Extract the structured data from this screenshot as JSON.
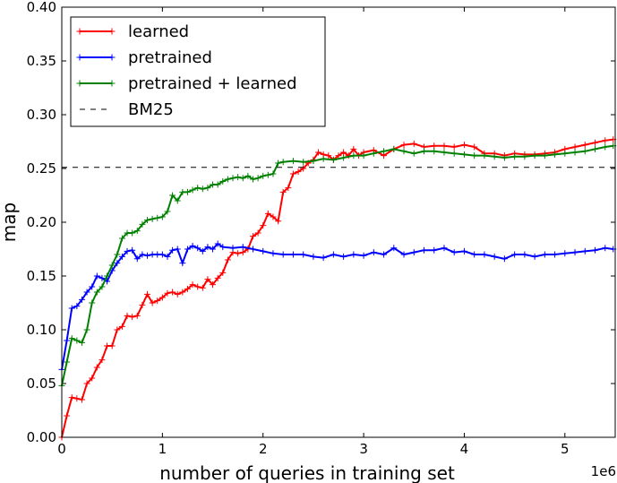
{
  "chart_data": {
    "type": "line",
    "title": "",
    "xlabel": "number of queries in training set",
    "ylabel": "map",
    "x_multiplier_label": "1e6",
    "xlim": [
      0,
      5.5
    ],
    "ylim": [
      0,
      0.4
    ],
    "x_ticks": [
      0,
      1,
      2,
      3,
      4,
      5
    ],
    "x_tick_labels": [
      "0",
      "1",
      "2",
      "3",
      "4",
      "5"
    ],
    "y_ticks": [
      0,
      0.05,
      0.1,
      0.15,
      0.2,
      0.25,
      0.3,
      0.35,
      0.4
    ],
    "y_tick_labels": [
      "0.00",
      "0.05",
      "0.10",
      "0.15",
      "0.20",
      "0.25",
      "0.30",
      "0.35",
      "0.40"
    ],
    "grid": false,
    "legend_position": "top-left",
    "series": [
      {
        "name": "learned",
        "color": "#ff0000",
        "marker": "plus",
        "x": [
          0,
          0.05,
          0.1,
          0.15,
          0.2,
          0.25,
          0.3,
          0.35,
          0.4,
          0.45,
          0.5,
          0.55,
          0.6,
          0.65,
          0.7,
          0.75,
          0.8,
          0.85,
          0.9,
          0.95,
          1.0,
          1.05,
          1.1,
          1.15,
          1.2,
          1.25,
          1.3,
          1.35,
          1.4,
          1.45,
          1.5,
          1.55,
          1.6,
          1.65,
          1.7,
          1.75,
          1.8,
          1.85,
          1.9,
          1.95,
          2.0,
          2.05,
          2.1,
          2.15,
          2.2,
          2.25,
          2.3,
          2.35,
          2.4,
          2.45,
          2.5,
          2.55,
          2.6,
          2.65,
          2.7,
          2.75,
          2.8,
          2.85,
          2.9,
          2.95,
          3.0,
          3.1,
          3.2,
          3.3,
          3.4,
          3.5,
          3.6,
          3.7,
          3.8,
          3.9,
          4.0,
          4.1,
          4.2,
          4.3,
          4.4,
          4.5,
          4.6,
          4.7,
          4.8,
          4.9,
          5.0,
          5.1,
          5.2,
          5.3,
          5.4,
          5.48
        ],
        "y": [
          0.0,
          0.02,
          0.037,
          0.036,
          0.035,
          0.05,
          0.055,
          0.065,
          0.072,
          0.085,
          0.085,
          0.1,
          0.103,
          0.113,
          0.112,
          0.113,
          0.123,
          0.133,
          0.125,
          0.127,
          0.13,
          0.134,
          0.135,
          0.133,
          0.135,
          0.138,
          0.142,
          0.14,
          0.139,
          0.147,
          0.142,
          0.148,
          0.153,
          0.165,
          0.172,
          0.171,
          0.172,
          0.175,
          0.187,
          0.19,
          0.197,
          0.208,
          0.205,
          0.201,
          0.228,
          0.232,
          0.245,
          0.247,
          0.25,
          0.255,
          0.258,
          0.265,
          0.263,
          0.262,
          0.258,
          0.262,
          0.265,
          0.262,
          0.268,
          0.262,
          0.265,
          0.267,
          0.262,
          0.268,
          0.272,
          0.273,
          0.27,
          0.271,
          0.271,
          0.27,
          0.272,
          0.27,
          0.264,
          0.264,
          0.262,
          0.264,
          0.263,
          0.263,
          0.264,
          0.265,
          0.268,
          0.27,
          0.272,
          0.274,
          0.276,
          0.277
        ]
      },
      {
        "name": "pretrained",
        "color": "#0000ff",
        "marker": "plus",
        "x": [
          0,
          0.05,
          0.1,
          0.15,
          0.2,
          0.25,
          0.3,
          0.35,
          0.4,
          0.45,
          0.5,
          0.55,
          0.6,
          0.65,
          0.7,
          0.75,
          0.8,
          0.85,
          0.9,
          0.95,
          1.0,
          1.05,
          1.1,
          1.15,
          1.2,
          1.25,
          1.3,
          1.35,
          1.4,
          1.45,
          1.5,
          1.55,
          1.6,
          1.7,
          1.8,
          1.9,
          2.0,
          2.1,
          2.2,
          2.3,
          2.4,
          2.5,
          2.6,
          2.7,
          2.8,
          2.9,
          3.0,
          3.1,
          3.2,
          3.3,
          3.4,
          3.5,
          3.6,
          3.7,
          3.8,
          3.9,
          4.0,
          4.1,
          4.2,
          4.3,
          4.4,
          4.5,
          4.6,
          4.7,
          4.8,
          4.9,
          5.0,
          5.1,
          5.2,
          5.3,
          5.4,
          5.48
        ],
        "y": [
          0.063,
          0.09,
          0.12,
          0.122,
          0.128,
          0.135,
          0.14,
          0.15,
          0.148,
          0.145,
          0.155,
          0.162,
          0.168,
          0.173,
          0.174,
          0.166,
          0.17,
          0.169,
          0.17,
          0.17,
          0.17,
          0.168,
          0.174,
          0.175,
          0.162,
          0.175,
          0.178,
          0.176,
          0.173,
          0.177,
          0.175,
          0.18,
          0.177,
          0.176,
          0.177,
          0.175,
          0.173,
          0.171,
          0.17,
          0.17,
          0.17,
          0.168,
          0.167,
          0.17,
          0.168,
          0.17,
          0.169,
          0.172,
          0.17,
          0.176,
          0.17,
          0.172,
          0.174,
          0.174,
          0.176,
          0.172,
          0.173,
          0.17,
          0.17,
          0.168,
          0.166,
          0.17,
          0.17,
          0.168,
          0.17,
          0.17,
          0.171,
          0.172,
          0.173,
          0.174,
          0.176,
          0.175
        ]
      },
      {
        "name": "pretrained + learned",
        "color": "#008000",
        "marker": "plus",
        "x": [
          0,
          0.05,
          0.1,
          0.15,
          0.2,
          0.25,
          0.3,
          0.35,
          0.4,
          0.45,
          0.5,
          0.55,
          0.6,
          0.65,
          0.7,
          0.75,
          0.8,
          0.85,
          0.9,
          0.95,
          1.0,
          1.05,
          1.1,
          1.15,
          1.2,
          1.25,
          1.3,
          1.35,
          1.4,
          1.45,
          1.5,
          1.55,
          1.6,
          1.65,
          1.7,
          1.75,
          1.8,
          1.85,
          1.9,
          1.95,
          2.0,
          2.05,
          2.1,
          2.15,
          2.2,
          2.3,
          2.4,
          2.5,
          2.6,
          2.7,
          2.8,
          2.9,
          3.0,
          3.1,
          3.2,
          3.3,
          3.4,
          3.5,
          3.6,
          3.7,
          3.8,
          3.9,
          4.0,
          4.1,
          4.2,
          4.3,
          4.4,
          4.5,
          4.6,
          4.7,
          4.8,
          4.9,
          5.0,
          5.1,
          5.2,
          5.3,
          5.4,
          5.48
        ],
        "y": [
          0.048,
          0.07,
          0.092,
          0.09,
          0.088,
          0.1,
          0.125,
          0.135,
          0.14,
          0.15,
          0.16,
          0.17,
          0.185,
          0.19,
          0.19,
          0.192,
          0.198,
          0.202,
          0.203,
          0.204,
          0.205,
          0.21,
          0.225,
          0.22,
          0.228,
          0.228,
          0.23,
          0.232,
          0.231,
          0.232,
          0.235,
          0.235,
          0.238,
          0.24,
          0.241,
          0.242,
          0.241,
          0.243,
          0.24,
          0.241,
          0.243,
          0.244,
          0.245,
          0.255,
          0.256,
          0.257,
          0.256,
          0.257,
          0.259,
          0.258,
          0.26,
          0.262,
          0.262,
          0.264,
          0.266,
          0.268,
          0.266,
          0.264,
          0.266,
          0.266,
          0.265,
          0.264,
          0.263,
          0.262,
          0.262,
          0.261,
          0.26,
          0.261,
          0.261,
          0.262,
          0.262,
          0.263,
          0.264,
          0.265,
          0.266,
          0.268,
          0.27,
          0.271
        ]
      },
      {
        "name": "BM25",
        "color": "#000000",
        "style": "dashed",
        "x": [
          0,
          5.5
        ],
        "y": [
          0.251,
          0.251
        ]
      }
    ]
  }
}
